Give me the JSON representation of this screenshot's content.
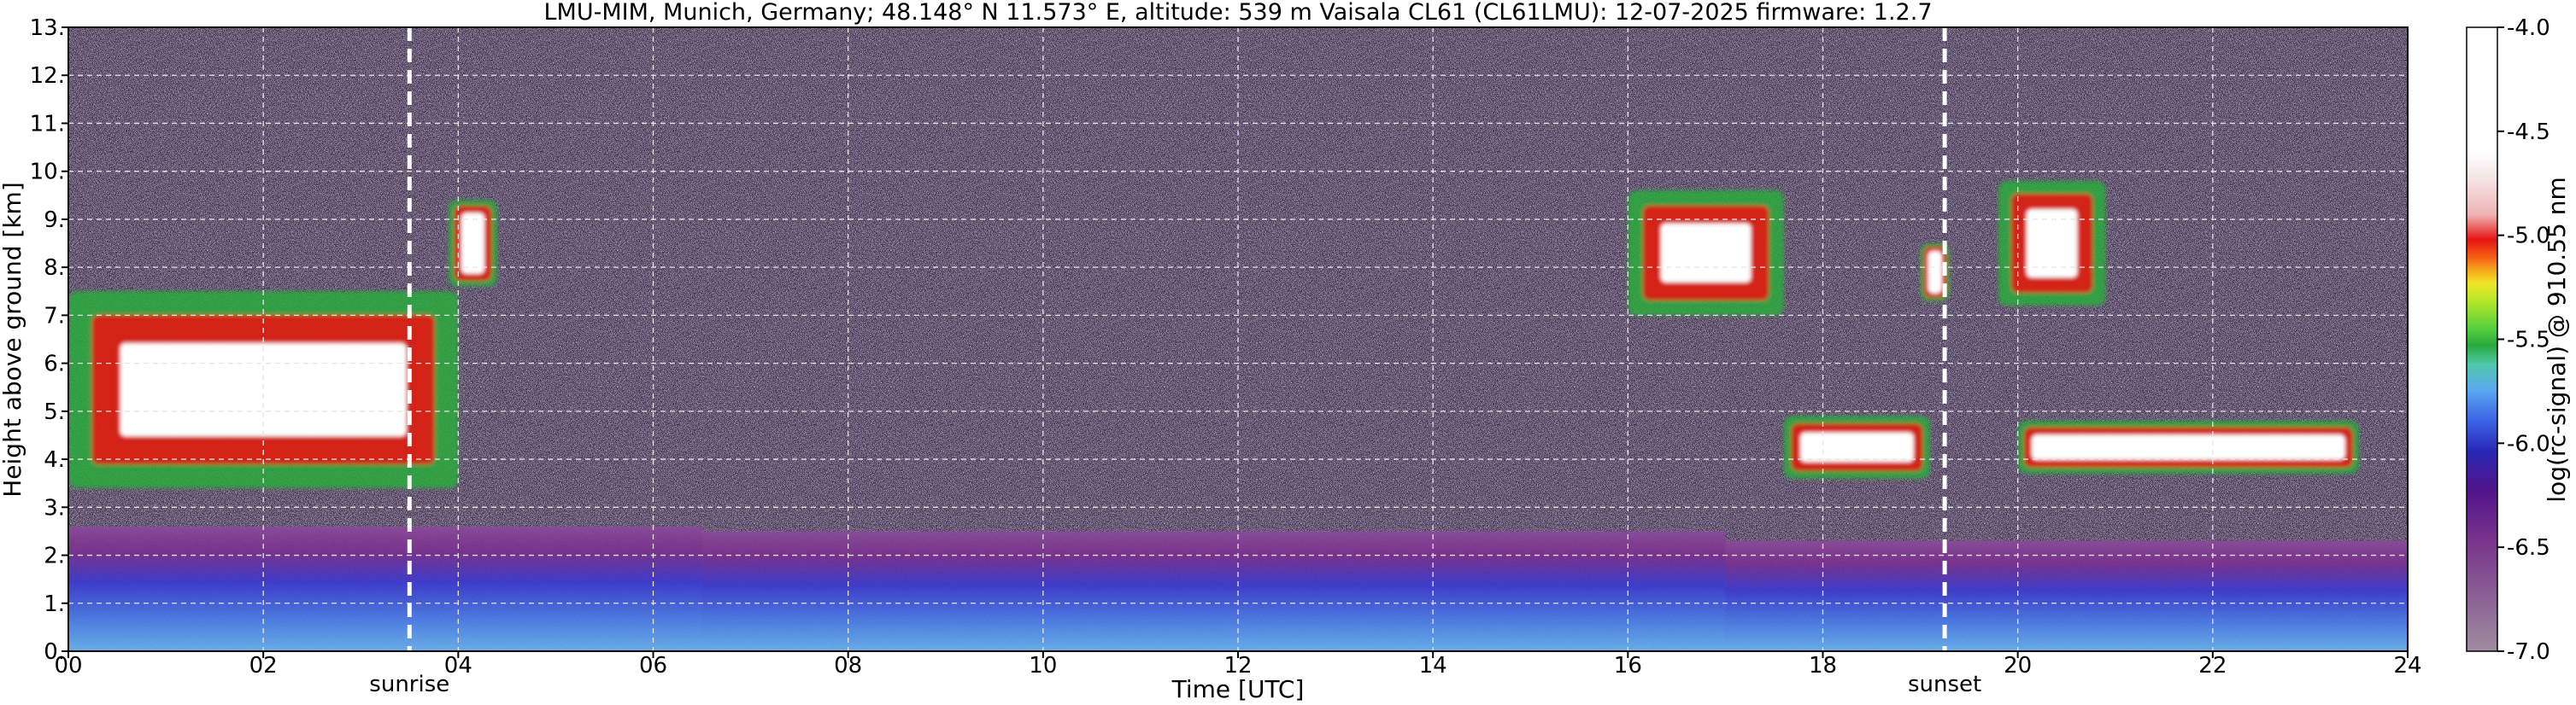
{
  "chart_data": {
    "type": "heatmap",
    "title": "LMU-MIM, Munich, Germany; 48.148° N 11.573° E, altitude: 539 m    Vaisala CL61 (CL61LMU): 12-07-2025    firmware: 1.2.7",
    "xlabel": "Time [UTC]",
    "ylabel": "Height above ground [km]",
    "xlim": [
      0,
      24
    ],
    "ylim": [
      0,
      13
    ],
    "x_ticks": [
      "00",
      "02",
      "04",
      "06",
      "08",
      "10",
      "12",
      "14",
      "16",
      "18",
      "20",
      "22",
      "24"
    ],
    "y_ticks": [
      "0.",
      "1.",
      "2.",
      "3.",
      "4.",
      "5.",
      "6.",
      "7.",
      "8.",
      "9.",
      "10.",
      "11.",
      "12.",
      "13."
    ],
    "grid": true,
    "colorbar": {
      "label": "log(rc-signal) @ 910.55 nm",
      "range": [
        -7.0,
        -4.0
      ],
      "ticks": [
        "-7.0",
        "-6.5",
        "-6.0",
        "-5.5",
        "-5.0",
        "-4.5",
        "-4.0"
      ]
    },
    "annotations": [
      {
        "label": "sunrise",
        "time_utc": 3.5
      },
      {
        "label": "sunset",
        "time_utc": 19.25
      }
    ],
    "cloud_layers": [
      {
        "t_start": 0.0,
        "t_end": 4.0,
        "base_km": 3.4,
        "top_km": 7.5
      },
      {
        "t_start": 3.9,
        "t_end": 4.4,
        "base_km": 7.6,
        "top_km": 9.4
      },
      {
        "t_start": 16.0,
        "t_end": 17.6,
        "base_km": 7.0,
        "top_km": 9.6
      },
      {
        "t_start": 17.6,
        "t_end": 19.1,
        "base_km": 3.6,
        "top_km": 4.9
      },
      {
        "t_start": 19.0,
        "t_end": 19.3,
        "base_km": 7.3,
        "top_km": 8.5
      },
      {
        "t_start": 19.8,
        "t_end": 20.9,
        "base_km": 7.2,
        "top_km": 9.8
      },
      {
        "t_start": 20.0,
        "t_end": 23.5,
        "base_km": 3.7,
        "top_km": 4.8
      }
    ],
    "boundary_layer": [
      {
        "t_start": 0.0,
        "t_end": 6.5,
        "top_km": 2.6
      },
      {
        "t_start": 6.5,
        "t_end": 17.0,
        "top_km": 2.5
      },
      {
        "t_start": 17.0,
        "t_end": 24.0,
        "top_km": 2.3
      }
    ],
    "colors": {
      "background_noise": "#3a2a48",
      "colormap": [
        "#a08ca0",
        "#8c6496",
        "#78328c",
        "#50148c",
        "#2828b4",
        "#3c64e6",
        "#5aaaf0",
        "#50c8aa",
        "#28aa3c",
        "#5ad23c",
        "#b4e628",
        "#f0e628",
        "#f5aa1e",
        "#f56414",
        "#e61414",
        "#f0b4b4",
        "#ffffff"
      ]
    }
  }
}
